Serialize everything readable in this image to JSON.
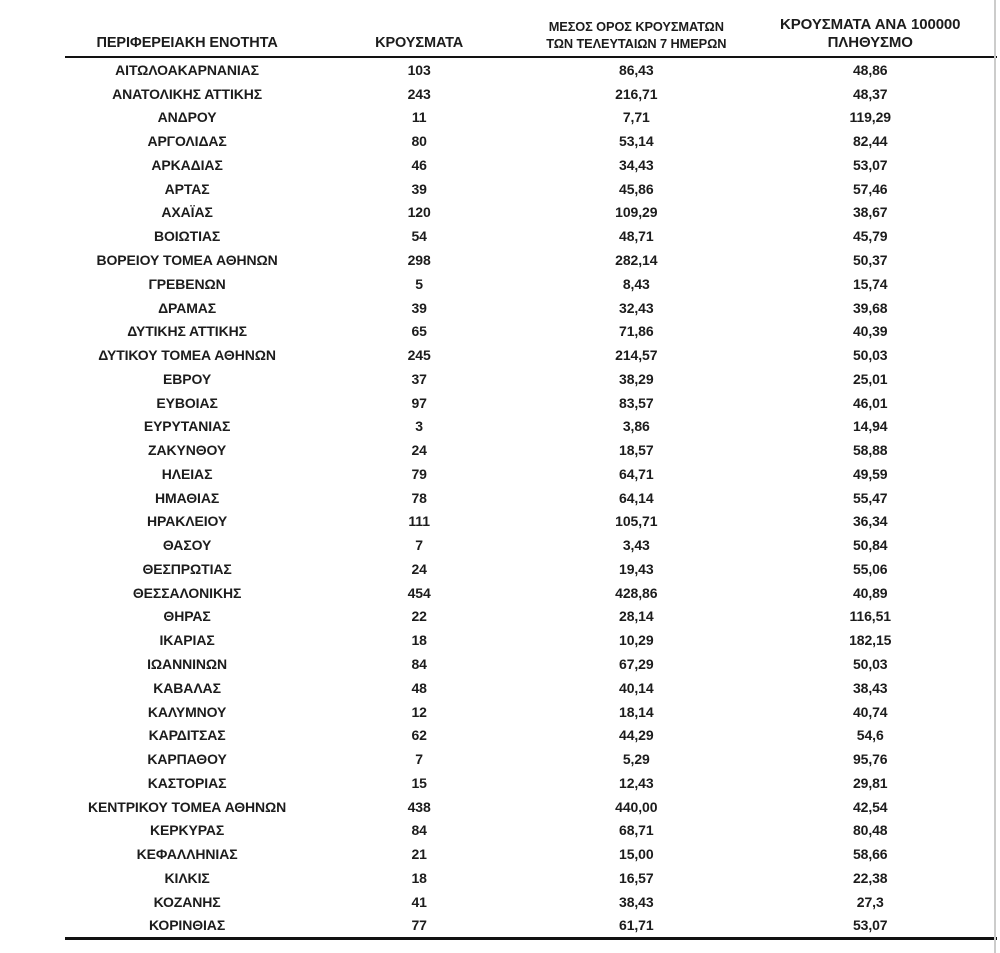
{
  "table": {
    "headers": {
      "region": "ΠΕΡΙΦΕΡΕΙΑΚΗ ΕΝΟΤΗΤΑ",
      "cases": "ΚΡΟΥΣΜΑΤΑ",
      "avg7_line1": "ΜΕΣΟΣ ΟΡΟΣ ΚΡΟΥΣΜΑΤΩΝ",
      "avg7_line2": "ΤΩΝ ΤΕΛΕΥΤΑΙΩΝ 7 ΗΜΕΡΩΝ",
      "per100k_line1": "ΚΡΟΥΣΜΑΤΑ ΑΝΑ 100000",
      "per100k_line2": "ΠΛΗΘΥΣΜΟ"
    },
    "rows": [
      [
        "ΑΙΤΩΛΟΑΚΑΡΝΑΝΙΑΣ",
        "103",
        "86,43",
        "48,86"
      ],
      [
        "ΑΝΑΤΟΛΙΚΗΣ ΑΤΤΙΚΗΣ",
        "243",
        "216,71",
        "48,37"
      ],
      [
        "ΑΝΔΡΟΥ",
        "11",
        "7,71",
        "119,29"
      ],
      [
        "ΑΡΓΟΛΙΔΑΣ",
        "80",
        "53,14",
        "82,44"
      ],
      [
        "ΑΡΚΑΔΙΑΣ",
        "46",
        "34,43",
        "53,07"
      ],
      [
        "ΑΡΤΑΣ",
        "39",
        "45,86",
        "57,46"
      ],
      [
        "ΑΧΑΪΑΣ",
        "120",
        "109,29",
        "38,67"
      ],
      [
        "ΒΟΙΩΤΙΑΣ",
        "54",
        "48,71",
        "45,79"
      ],
      [
        "ΒΟΡΕΙΟΥ ΤΟΜΕΑ ΑΘΗΝΩΝ",
        "298",
        "282,14",
        "50,37"
      ],
      [
        "ΓΡΕΒΕΝΩΝ",
        "5",
        "8,43",
        "15,74"
      ],
      [
        "ΔΡΑΜΑΣ",
        "39",
        "32,43",
        "39,68"
      ],
      [
        "ΔΥΤΙΚΗΣ ΑΤΤΙΚΗΣ",
        "65",
        "71,86",
        "40,39"
      ],
      [
        "ΔΥΤΙΚΟΥ ΤΟΜΕΑ ΑΘΗΝΩΝ",
        "245",
        "214,57",
        "50,03"
      ],
      [
        "ΕΒΡΟΥ",
        "37",
        "38,29",
        "25,01"
      ],
      [
        "ΕΥΒΟΙΑΣ",
        "97",
        "83,57",
        "46,01"
      ],
      [
        "ΕΥΡΥΤΑΝΙΑΣ",
        "3",
        "3,86",
        "14,94"
      ],
      [
        "ΖΑΚΥΝΘΟΥ",
        "24",
        "18,57",
        "58,88"
      ],
      [
        "ΗΛΕΙΑΣ",
        "79",
        "64,71",
        "49,59"
      ],
      [
        "ΗΜΑΘΙΑΣ",
        "78",
        "64,14",
        "55,47"
      ],
      [
        "ΗΡΑΚΛΕΙΟΥ",
        "111",
        "105,71",
        "36,34"
      ],
      [
        "ΘΑΣΟΥ",
        "7",
        "3,43",
        "50,84"
      ],
      [
        "ΘΕΣΠΡΩΤΙΑΣ",
        "24",
        "19,43",
        "55,06"
      ],
      [
        "ΘΕΣΣΑΛΟΝΙΚΗΣ",
        "454",
        "428,86",
        "40,89"
      ],
      [
        "ΘΗΡΑΣ",
        "22",
        "28,14",
        "116,51"
      ],
      [
        "ΙΚΑΡΙΑΣ",
        "18",
        "10,29",
        "182,15"
      ],
      [
        "ΙΩΑΝΝΙΝΩΝ",
        "84",
        "67,29",
        "50,03"
      ],
      [
        "ΚΑΒΑΛΑΣ",
        "48",
        "40,14",
        "38,43"
      ],
      [
        "ΚΑΛΥΜΝΟΥ",
        "12",
        "18,14",
        "40,74"
      ],
      [
        "ΚΑΡΔΙΤΣΑΣ",
        "62",
        "44,29",
        "54,6"
      ],
      [
        "ΚΑΡΠΑΘΟΥ",
        "7",
        "5,29",
        "95,76"
      ],
      [
        "ΚΑΣΤΟΡΙΑΣ",
        "15",
        "12,43",
        "29,81"
      ],
      [
        "ΚΕΝΤΡΙΚΟΥ ΤΟΜΕΑ ΑΘΗΝΩΝ",
        "438",
        "440,00",
        "42,54"
      ],
      [
        "ΚΕΡΚΥΡΑΣ",
        "84",
        "68,71",
        "80,48"
      ],
      [
        "ΚΕΦΑΛΛΗΝΙΑΣ",
        "21",
        "15,00",
        "58,66"
      ],
      [
        "ΚΙΛΚΙΣ",
        "18",
        "16,57",
        "22,38"
      ],
      [
        "ΚΟΖΑΝΗΣ",
        "41",
        "38,43",
        "27,3"
      ],
      [
        "ΚΟΡΙΝΘΙΑΣ",
        "77",
        "61,71",
        "53,07"
      ]
    ]
  },
  "colors": {
    "text": "#1c1c1c",
    "rule": "#121212",
    "page_edge": "#cccccb",
    "background": "#ffffff"
  }
}
